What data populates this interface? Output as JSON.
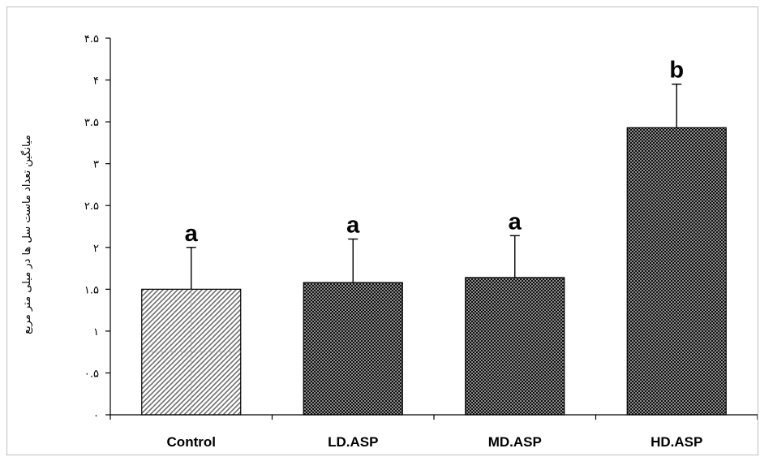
{
  "chart_data": {
    "type": "bar",
    "title": "",
    "xlabel": "",
    "ylabel": "میانگین تعداد ماست سل ها در میلی متر مربع",
    "categories": [
      "Control",
      "LD.ASP",
      "MD.ASP",
      "HD.ASP"
    ],
    "values": [
      1.5,
      1.58,
      1.64,
      3.43
    ],
    "errors": [
      0.5,
      0.52,
      0.5,
      0.52
    ],
    "significance": [
      "a",
      "a",
      "a",
      "b"
    ],
    "ylim": [
      0,
      4.5
    ],
    "yticks": [
      {
        "value": 0,
        "label": "۰"
      },
      {
        "value": 0.5,
        "label": "۰.۵"
      },
      {
        "value": 1,
        "label": "۱"
      },
      {
        "value": 1.5,
        "label": "۱.۵"
      },
      {
        "value": 2,
        "label": "۲"
      },
      {
        "value": 2.5,
        "label": "۲.۵"
      },
      {
        "value": 3,
        "label": "۳"
      },
      {
        "value": 3.5,
        "label": "۳.۵"
      },
      {
        "value": 4,
        "label": "۴"
      },
      {
        "value": 4.5,
        "label": "۴.۵"
      }
    ],
    "grid": false,
    "legend": "none",
    "bar_styles": [
      "diagonal-hatch-light",
      "checker-dark",
      "checker-dark",
      "checker-dark"
    ]
  }
}
